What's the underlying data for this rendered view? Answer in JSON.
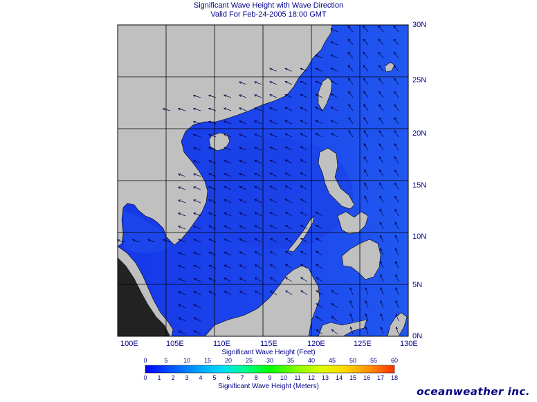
{
  "header": {
    "title": "Significant Wave Height with Wave Direction",
    "subtitle": "Valid For Feb-24-2005 18:00 GMT"
  },
  "map": {
    "lon_labels": [
      "100E",
      "105E",
      "110E",
      "115E",
      "120E",
      "125E",
      "130E"
    ],
    "lat_labels": [
      "0N",
      "5N",
      "10N",
      "15N",
      "20N",
      "25N",
      "30N"
    ],
    "land_color": "#c0c0c0",
    "water_color": "#1c45ec",
    "grid_color": "#000000",
    "arrow_color": "#000044"
  },
  "colorbar": {
    "feet_title": "Significant Wave Height (Feet)",
    "meters_title": "Significant Wave Height (Meters)",
    "feet_ticks": [
      "0",
      "5",
      "10",
      "15",
      "20",
      "25",
      "30",
      "35",
      "40",
      "45",
      "50",
      "55",
      "60"
    ],
    "meter_ticks": [
      "0",
      "1",
      "2",
      "3",
      "4",
      "5",
      "6",
      "7",
      "8",
      "9",
      "10",
      "11",
      "12",
      "13",
      "14",
      "15",
      "16",
      "17",
      "18"
    ],
    "colors": [
      "#0000ff",
      "#0050ff",
      "#0098ff",
      "#00d8ff",
      "#00ff90",
      "#00ff00",
      "#80ff00",
      "#d8ff00",
      "#ffd800",
      "#ff9000",
      "#ff3000"
    ]
  },
  "brand": {
    "name": "oceanweather inc."
  }
}
